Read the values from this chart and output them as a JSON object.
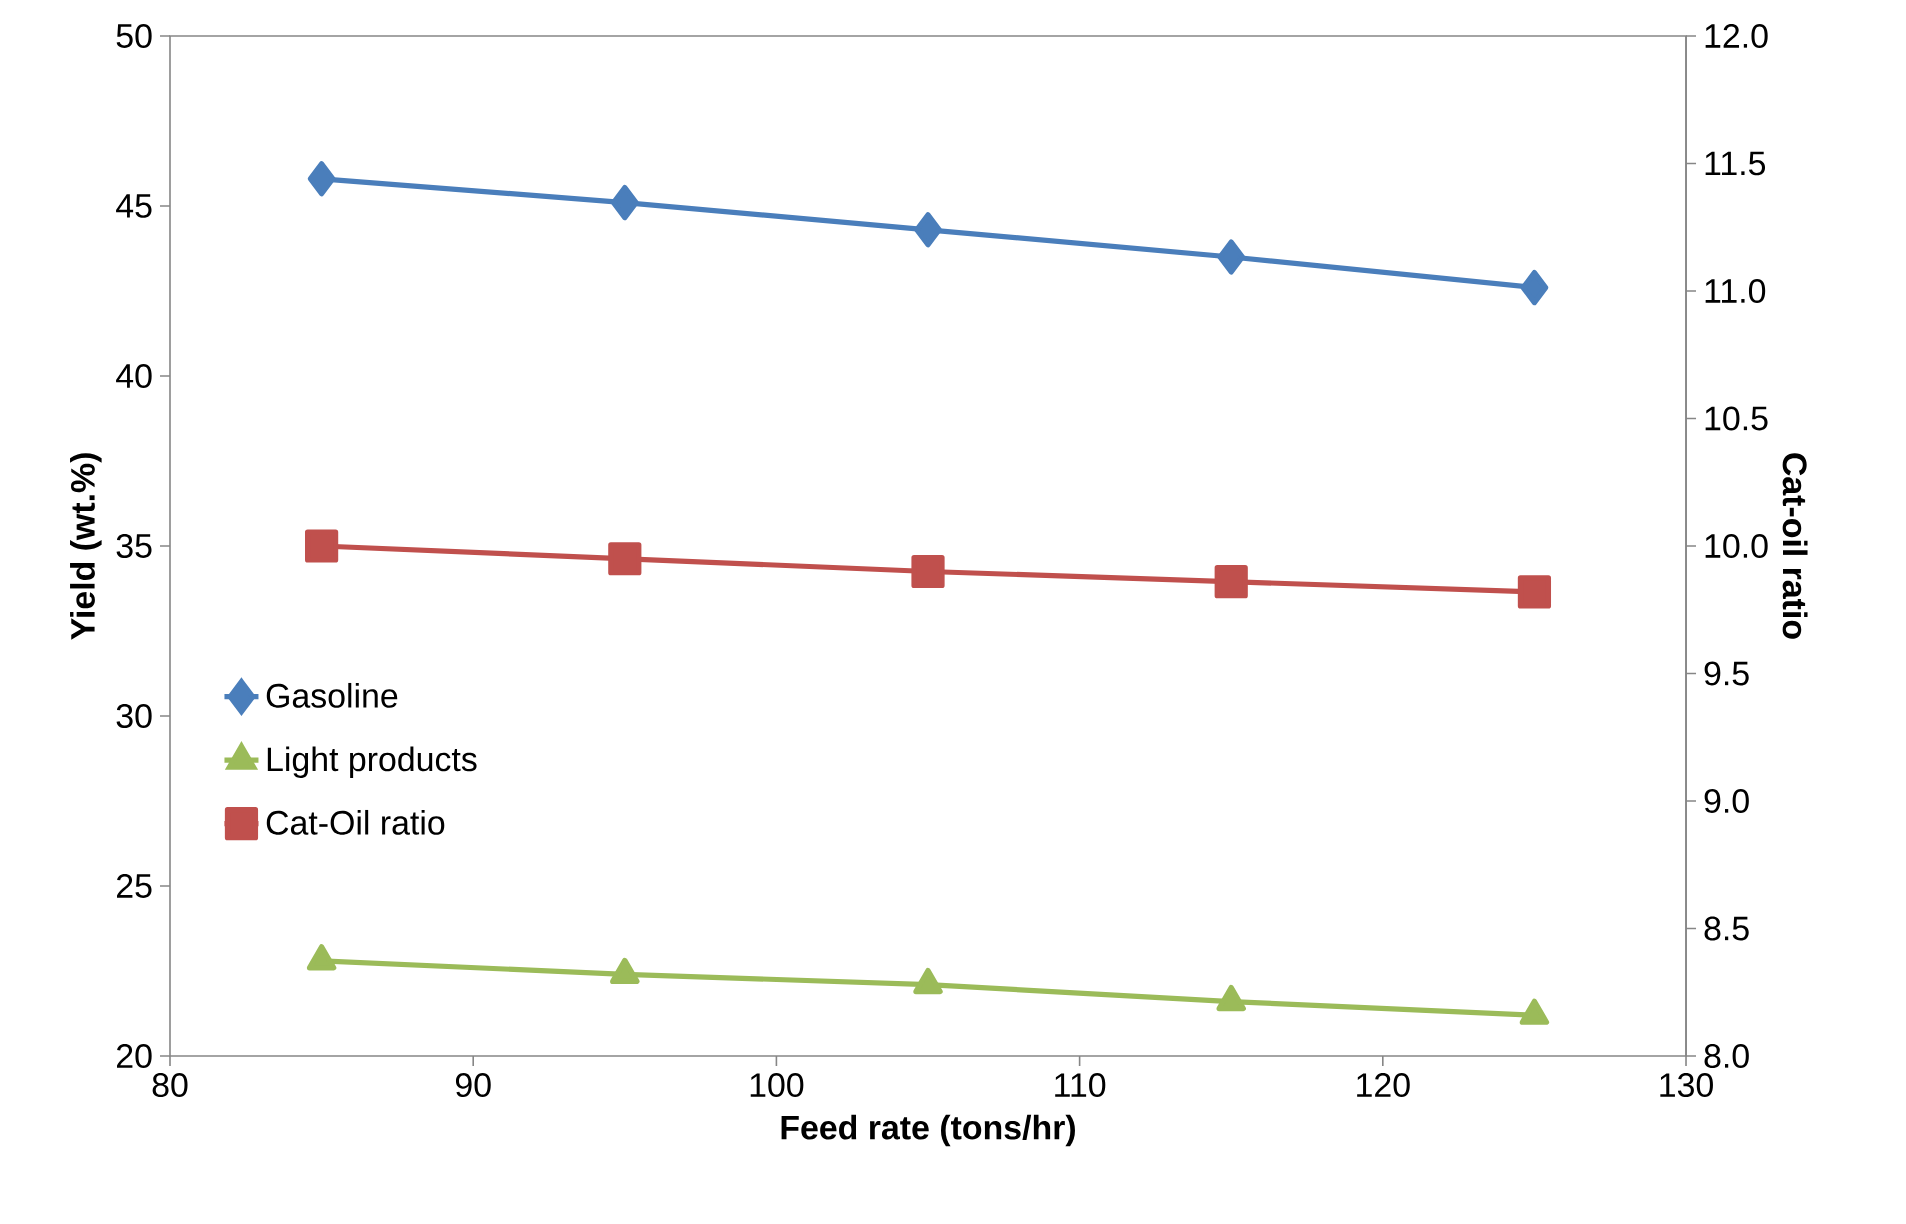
{
  "chart_data": {
    "type": "line",
    "xlabel": "Feed rate (tons/hr)",
    "ylabel": "Yield (wt.%)",
    "y2label": "Cat-oil ratio",
    "x": [
      85,
      95,
      105,
      115,
      125
    ],
    "series": [
      {
        "name": "Gasoline",
        "color": "#4a7ebb",
        "marker": "diamond",
        "values": [
          45.8,
          45.1,
          44.3,
          43.5,
          42.6
        ]
      },
      {
        "name": "Light products",
        "color": "#9bbb59",
        "marker": "triangle",
        "values": [
          22.8,
          22.4,
          22.1,
          21.6,
          21.2
        ]
      },
      {
        "name": "Cat-Oil ratio",
        "color": "#c0504d",
        "marker": "square",
        "axis": "y2",
        "values": [
          10.0,
          9.95,
          9.9,
          9.86,
          9.82
        ]
      }
    ],
    "xlim": [
      80,
      130
    ],
    "xticks": [
      80,
      90,
      100,
      110,
      120,
      130
    ],
    "ylim": [
      20,
      50
    ],
    "yticks": [
      20,
      25,
      30,
      35,
      40,
      45,
      50
    ],
    "y2lim": [
      8,
      12
    ],
    "y2ticks": [
      {
        "value": 8,
        "label": "8.0"
      },
      {
        "value": 8.5,
        "label": "8.5"
      },
      {
        "value": 9,
        "label": "9.0"
      },
      {
        "value": 9.5,
        "label": "9.5"
      },
      {
        "value": 10,
        "label": "10.0"
      },
      {
        "value": 10.5,
        "label": "10.5"
      },
      {
        "value": 11,
        "label": "11.0"
      },
      {
        "value": 11.5,
        "label": "11.5"
      },
      {
        "value": 12,
        "label": "12.0"
      }
    ],
    "legend": "left",
    "grid": false,
    "line_style": "solid"
  }
}
